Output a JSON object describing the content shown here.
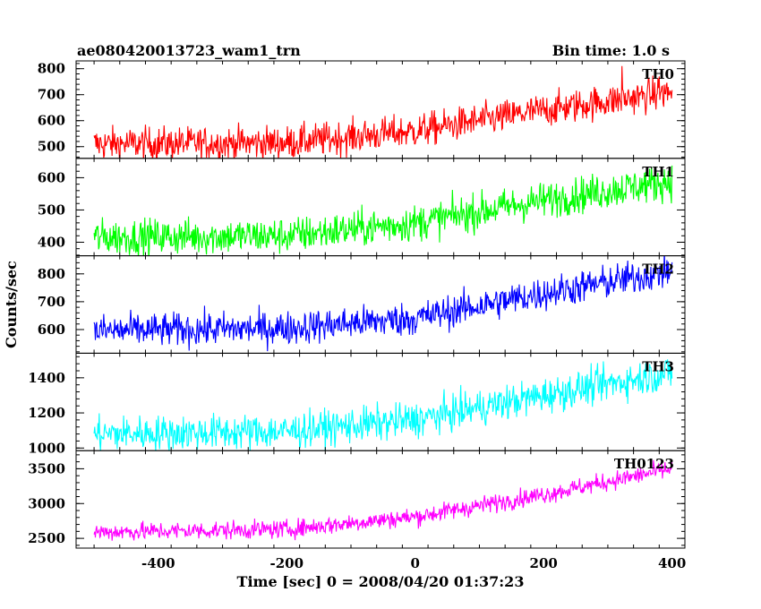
{
  "header": {
    "left_title": "ae080420013723_wam1_trn",
    "right_title": "Bin time: 1.0 s"
  },
  "axes": {
    "xlabel": "Time [sec] 0 = 2008/04/20 01:37:23",
    "ylabel": "Counts/sec"
  },
  "chart_data": {
    "type": "line",
    "x_range": [
      -500,
      400
    ],
    "xlim": [
      -528,
      420
    ],
    "x_ticks": [
      -400,
      -200,
      0,
      200,
      400
    ],
    "bin_time_s": 1.0,
    "series": [
      {
        "name": "TH0",
        "color": "#ff0000",
        "ylim": [
          455,
          830
        ],
        "y_ticks": [
          500,
          600,
          700,
          800
        ],
        "trend": [
          [
            -500,
            510
          ],
          [
            -200,
            515
          ],
          [
            0,
            560
          ],
          [
            200,
            640
          ],
          [
            400,
            710
          ]
        ],
        "noise": 32,
        "spikes": [
          [
            322,
            810
          ],
          [
            380,
            770
          ]
        ]
      },
      {
        "name": "TH1",
        "color": "#00ff00",
        "ylim": [
          358,
          660
        ],
        "y_ticks": [
          400,
          500,
          600
        ],
        "trend": [
          [
            -500,
            415
          ],
          [
            -200,
            420
          ],
          [
            0,
            460
          ],
          [
            200,
            530
          ],
          [
            400,
            590
          ]
        ],
        "noise": 28,
        "spikes": []
      },
      {
        "name": "TH2",
        "color": "#0000ff",
        "ylim": [
          515,
          865
        ],
        "y_ticks": [
          600,
          700,
          800
        ],
        "trend": [
          [
            -500,
            595
          ],
          [
            -200,
            605
          ],
          [
            0,
            640
          ],
          [
            200,
            730
          ],
          [
            400,
            810
          ]
        ],
        "noise": 30,
        "spikes": []
      },
      {
        "name": "TH3",
        "color": "#00ffff",
        "ylim": [
          985,
          1540
        ],
        "y_ticks": [
          1000,
          1200,
          1400
        ],
        "trend": [
          [
            -500,
            1080
          ],
          [
            -200,
            1095
          ],
          [
            0,
            1160
          ],
          [
            200,
            1300
          ],
          [
            400,
            1430
          ]
        ],
        "noise": 50,
        "spikes": []
      },
      {
        "name": "TH0123",
        "color": "#ff00ff",
        "ylim": [
          2360,
          3760
        ],
        "y_ticks": [
          2500,
          3000,
          3500
        ],
        "trend": [
          [
            -500,
            2590
          ],
          [
            -200,
            2630
          ],
          [
            0,
            2810
          ],
          [
            200,
            3130
          ],
          [
            400,
            3500
          ]
        ],
        "noise": 65,
        "spikes": []
      }
    ]
  }
}
